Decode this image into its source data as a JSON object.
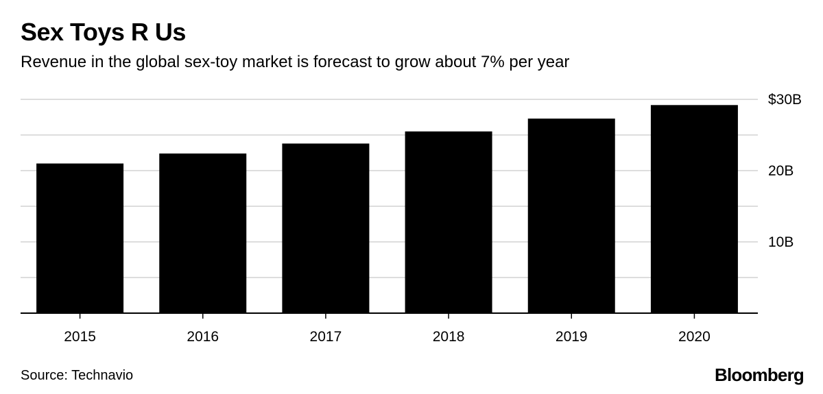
{
  "header": {
    "title": "Sex Toys R Us",
    "subtitle": "Revenue in the global sex-toy market is forecast to grow about 7% per year"
  },
  "footer": {
    "source": "Source: Technavio",
    "brand": "Bloomberg"
  },
  "colors": {
    "bar": "#000000",
    "grid": "#dddddd",
    "axis": "#000000"
  },
  "chart_data": {
    "type": "bar",
    "title": "Sex Toys R Us",
    "subtitle": "Revenue in the global sex-toy market is forecast to grow about 7% per year",
    "xlabel": "",
    "ylabel": "",
    "categories": [
      "2015",
      "2016",
      "2017",
      "2018",
      "2019",
      "2020"
    ],
    "values": [
      21.0,
      22.4,
      23.8,
      25.5,
      27.3,
      29.2
    ],
    "unit": "$B",
    "ylim": [
      0,
      30
    ],
    "y_ticks": [
      0,
      5,
      10,
      15,
      20,
      25,
      30
    ],
    "y_tick_labels": [
      {
        "value": 10,
        "label": "10B"
      },
      {
        "value": 20,
        "label": "20B"
      },
      {
        "value": 30,
        "label": "$30B"
      }
    ],
    "y_axis_side": "right",
    "grid": true,
    "legend": "none"
  }
}
